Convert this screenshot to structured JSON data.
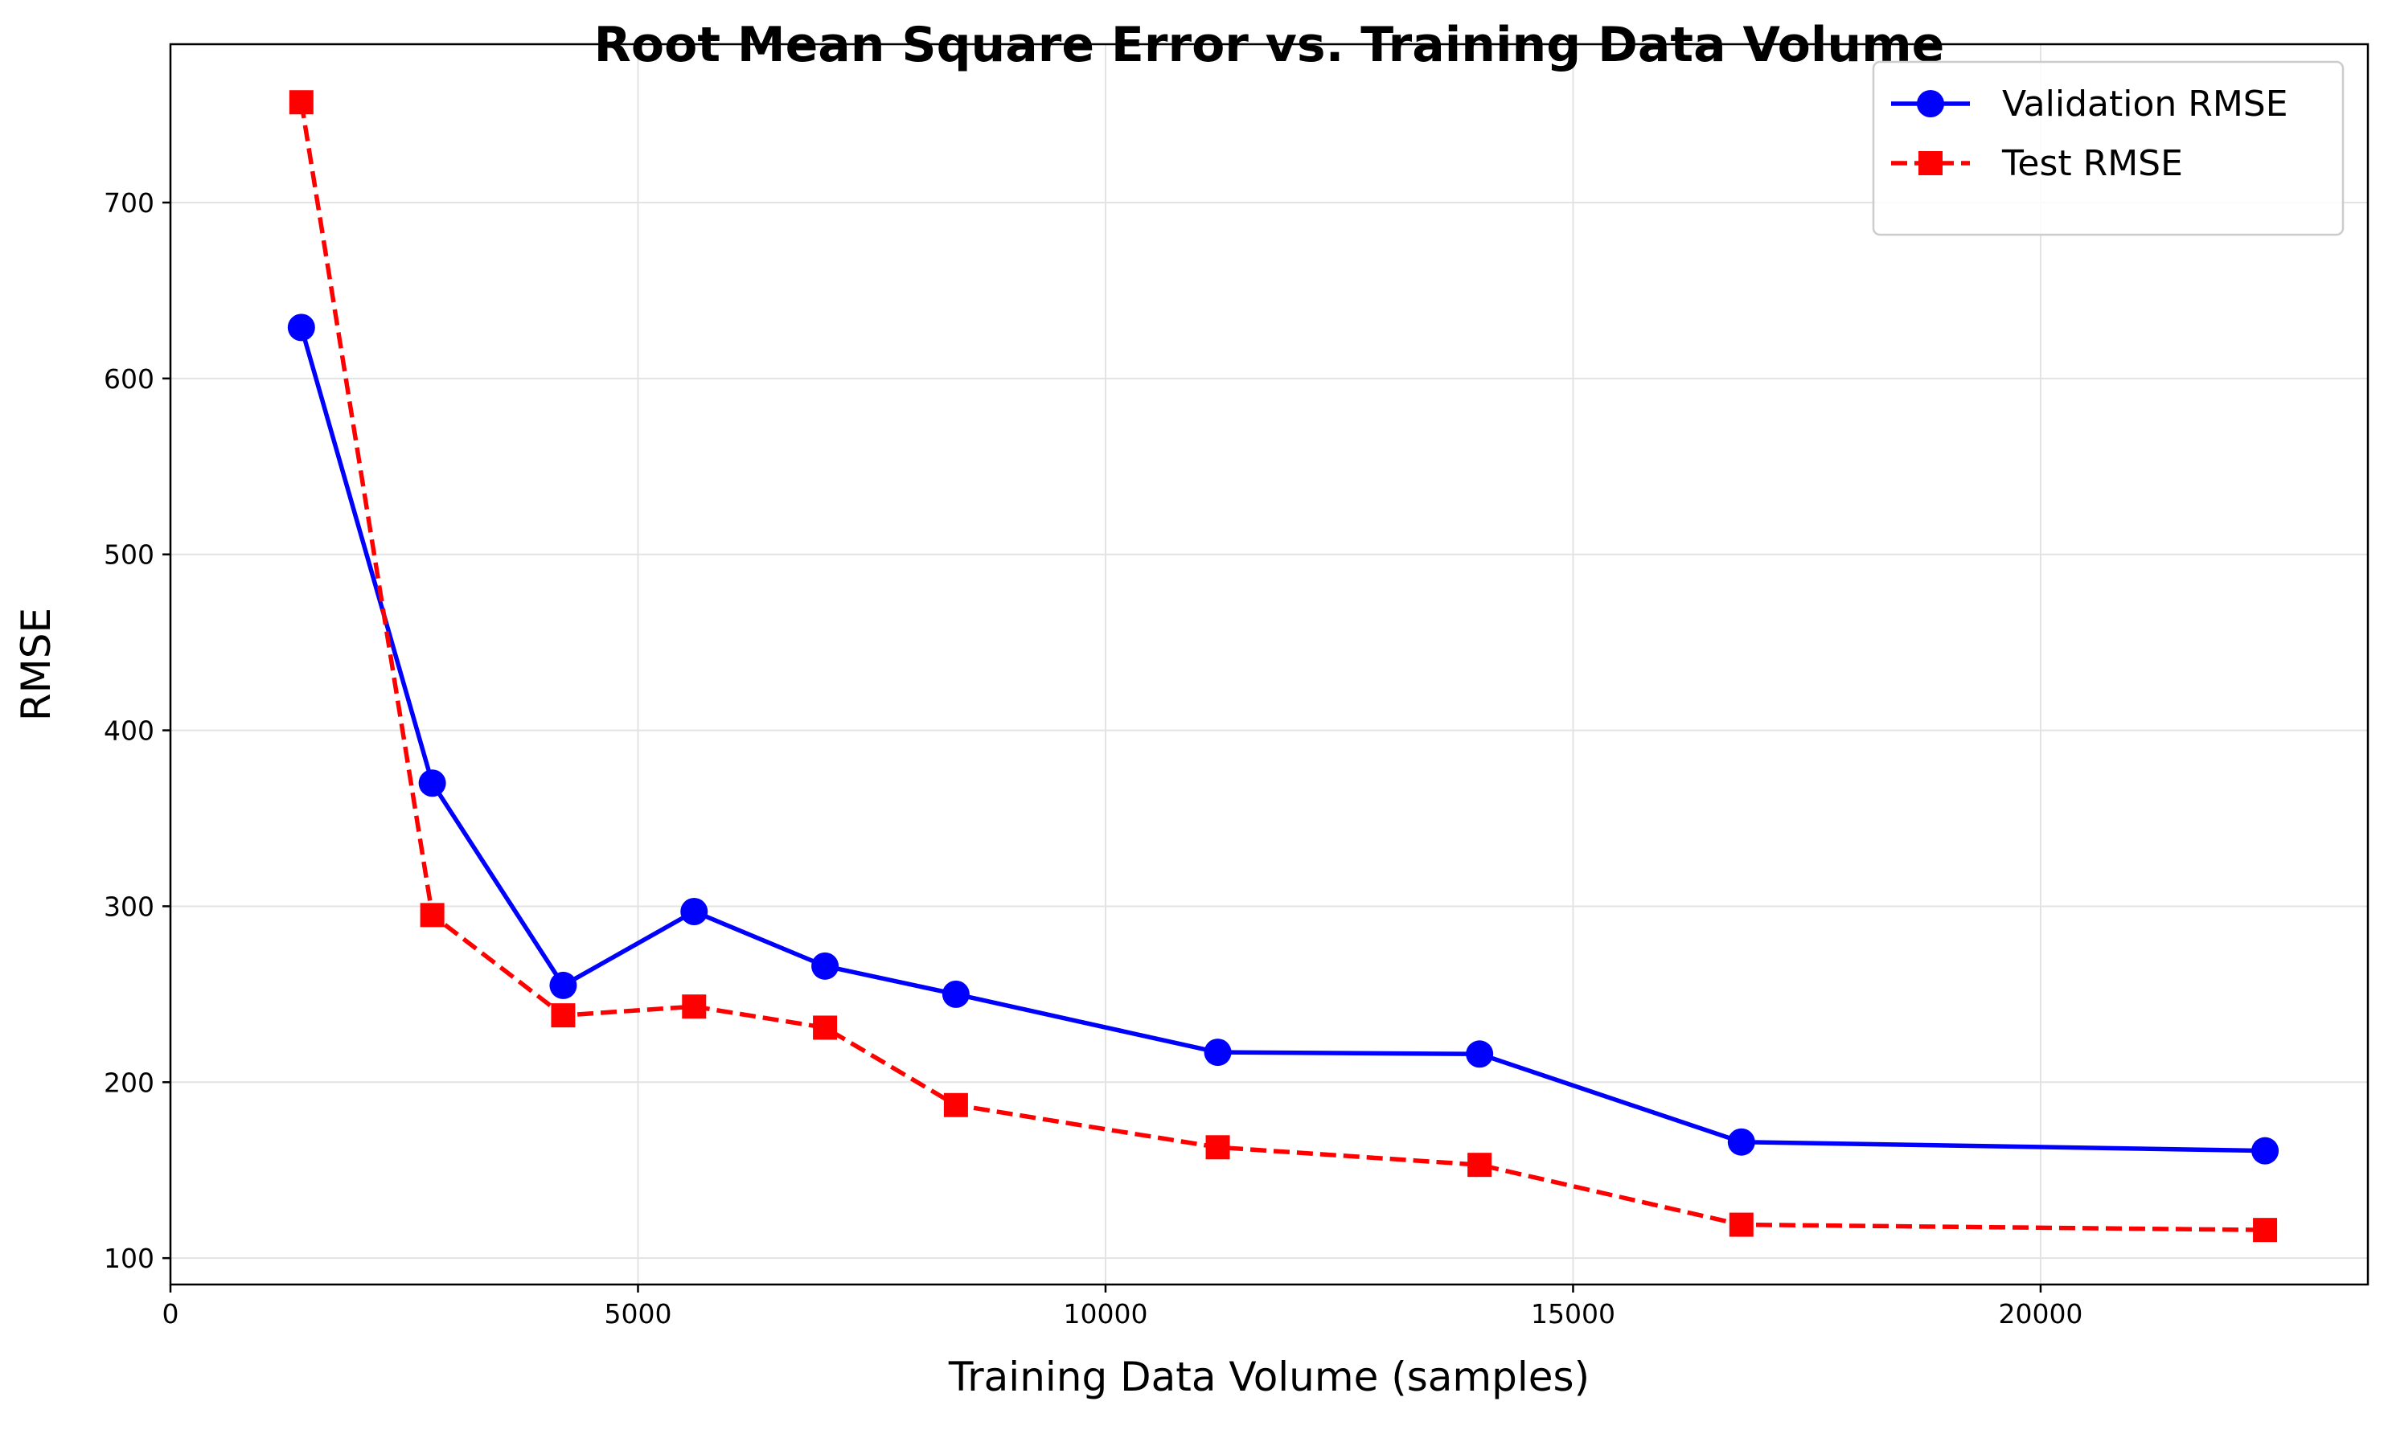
{
  "chart_data": {
    "type": "line",
    "title": "Root Mean Square Error vs. Training Data Volume",
    "xlabel": "Training Data Volume (samples)",
    "ylabel": "RMSE",
    "xlim": [
      0,
      23500
    ],
    "ylim": [
      85,
      790
    ],
    "x_ticks": [
      0,
      5000,
      10000,
      15000,
      20000
    ],
    "y_ticks": [
      100,
      200,
      300,
      400,
      500,
      600,
      700
    ],
    "x_tick_labels": [
      "0",
      "5000",
      "10000",
      "15000",
      "20000"
    ],
    "y_tick_labels": [
      "100",
      "200",
      "300",
      "400",
      "500",
      "600",
      "700"
    ],
    "grid": true,
    "legend_position": "top-right",
    "x": [
      1400,
      2800,
      4200,
      5600,
      7000,
      8400,
      11200,
      14000,
      16800,
      22400
    ],
    "series": [
      {
        "name": "Validation RMSE",
        "color": "#0000ff",
        "line_style": "solid",
        "marker": "circle",
        "values": [
          629,
          370,
          255,
          297,
          266,
          250,
          217,
          216,
          166,
          161
        ]
      },
      {
        "name": "Test RMSE",
        "color": "#ff0000",
        "line_style": "dashed",
        "marker": "square",
        "values": [
          757,
          295,
          238,
          243,
          231,
          187,
          163,
          153,
          119,
          116
        ]
      }
    ]
  }
}
